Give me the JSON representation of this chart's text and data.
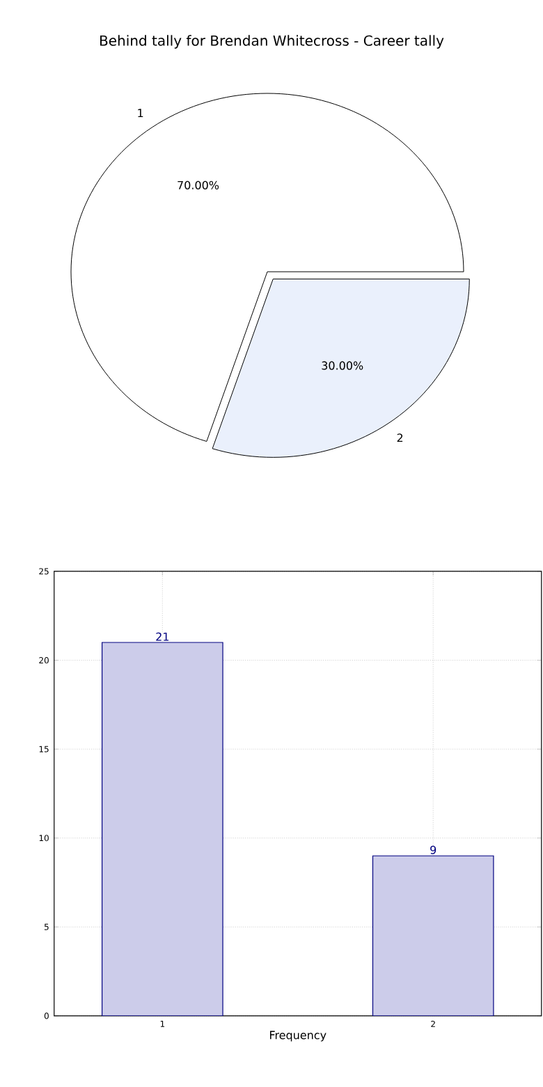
{
  "chart_data": [
    {
      "type": "pie",
      "title": "Behind tally for Brendan Whitecross - Career tally",
      "categories": [
        "1",
        "2"
      ],
      "values": [
        70,
        30
      ],
      "colors": [
        "#ffffff",
        "#eaf0fc"
      ],
      "value_labels": [
        "70.00%",
        "30.00%"
      ]
    },
    {
      "type": "bar",
      "xlabel": "Frequency",
      "categories": [
        "1",
        "2"
      ],
      "values": [
        21,
        9
      ],
      "color": "#ccccea",
      "ylim": [
        0,
        25
      ],
      "yticks": [
        0,
        5,
        10,
        15,
        20,
        25
      ],
      "grid": true,
      "data_labels": true
    }
  ]
}
